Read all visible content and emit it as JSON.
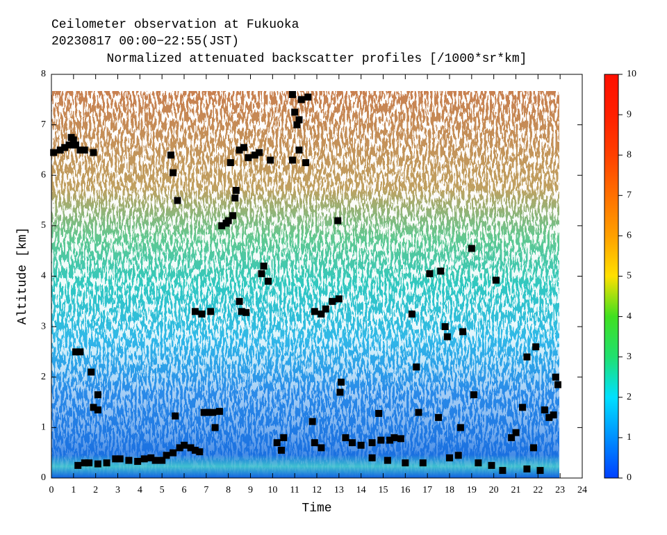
{
  "chart_data": {
    "type": "scatter",
    "title": "Ceilometer observation at Fukuoka",
    "subtitle": "20230817  00:00−22:55(JST)",
    "plot_title": "Normalized attenuated backscatter profiles [/1000*sr*km]",
    "x_label": "Time",
    "y_label": "Altitude [km]",
    "xlim": [
      0,
      24
    ],
    "xticks": [
      0,
      1,
      2,
      3,
      4,
      5,
      6,
      7,
      8,
      9,
      10,
      11,
      12,
      13,
      14,
      15,
      16,
      17,
      18,
      19,
      20,
      21,
      22,
      23,
      24
    ],
    "ylim": [
      0,
      8
    ],
    "yticks": [
      0,
      1,
      2,
      3,
      4,
      5,
      6,
      7,
      8
    ],
    "marker_color": "#000000",
    "colorbar": {
      "lim": [
        0,
        10
      ],
      "ticks": [
        0,
        1,
        2,
        3,
        4,
        5,
        6,
        7,
        8,
        9,
        10
      ],
      "colors": [
        "#0040ff",
        "#0090ff",
        "#00e0ff",
        "#20e070",
        "#40e020",
        "#ffe000",
        "#ffa000",
        "#ff7000",
        "#ff4000",
        "#ff2000",
        "#ff1000"
      ]
    },
    "x": [
      0.1,
      0.4,
      0.6,
      0.8,
      0.9,
      1.0,
      1.1,
      1.3,
      1.5,
      1.9,
      1.1,
      1.3,
      1.8,
      1.9,
      2.1,
      2.1,
      1.2,
      1.5,
      1.7,
      2.1,
      2.5,
      2.9,
      3.1,
      3.5,
      3.9,
      4.2,
      4.5,
      4.7,
      5.0,
      5.2,
      5.5,
      5.4,
      5.5,
      5.7,
      5.6,
      5.8,
      6.0,
      6.3,
      6.5,
      6.7,
      6.5,
      6.8,
      7.2,
      6.9,
      7.1,
      7.3,
      7.6,
      7.4,
      7.7,
      7.9,
      8.0,
      8.2,
      8.3,
      8.35,
      8.1,
      8.5,
      8.7,
      8.9,
      9.2,
      9.4,
      9.9,
      8.5,
      8.6,
      8.8,
      9.5,
      9.6,
      9.8,
      10.2,
      10.4,
      10.5,
      10.9,
      11.0,
      11.1,
      11.2,
      11.3,
      11.6,
      11.2,
      11.5,
      10.9,
      11.9,
      12.2,
      12.4,
      12.7,
      13.0,
      12.95,
      13.1,
      13.05,
      11.8,
      11.9,
      12.2,
      13.3,
      13.6,
      14.0,
      14.5,
      14.9,
      15.3,
      15.5,
      15.8,
      14.8,
      14.5,
      15.2,
      16.0,
      16.3,
      16.5,
      16.6,
      16.8,
      17.1,
      17.6,
      17.8,
      17.9,
      17.5,
      18.0,
      18.4,
      18.6,
      18.5,
      19.0,
      19.1,
      19.3,
      19.9,
      20.1,
      20.4,
      20.8,
      21.0,
      21.3,
      21.5,
      21.5,
      21.9,
      21.8,
      22.1,
      22.3,
      22.5,
      22.7,
      22.8,
      22.9
    ],
    "values": [
      6.45,
      6.5,
      6.55,
      6.6,
      6.75,
      6.7,
      6.6,
      6.5,
      6.5,
      6.45,
      2.5,
      2.5,
      2.1,
      1.4,
      1.35,
      1.65,
      0.25,
      0.3,
      0.3,
      0.28,
      0.3,
      0.38,
      0.38,
      0.35,
      0.33,
      0.38,
      0.4,
      0.35,
      0.35,
      0.45,
      0.5,
      6.4,
      6.05,
      5.5,
      1.23,
      0.6,
      0.65,
      0.6,
      0.55,
      0.52,
      3.3,
      3.25,
      3.3,
      1.3,
      1.3,
      1.3,
      1.32,
      1.0,
      5.0,
      5.05,
      5.1,
      5.2,
      5.55,
      5.7,
      6.25,
      6.5,
      6.55,
      6.35,
      6.4,
      6.45,
      6.3,
      3.5,
      3.3,
      3.28,
      4.05,
      4.2,
      3.9,
      0.7,
      0.55,
      0.8,
      7.6,
      7.25,
      7.0,
      7.1,
      7.5,
      7.55,
      6.5,
      6.25,
      6.3,
      3.3,
      3.25,
      3.35,
      3.5,
      3.55,
      5.1,
      1.9,
      1.7,
      1.12,
      0.7,
      0.6,
      0.8,
      0.7,
      0.65,
      0.7,
      0.75,
      0.75,
      0.8,
      0.78,
      1.28,
      0.4,
      0.35,
      0.3,
      3.25,
      2.2,
      1.3,
      0.3,
      4.05,
      4.1,
      3.0,
      2.8,
      1.2,
      0.4,
      0.45,
      2.9,
      1.0,
      4.55,
      1.65,
      0.3,
      0.25,
      3.92,
      0.15,
      0.8,
      0.9,
      1.4,
      2.4,
      0.18,
      2.6,
      0.6,
      0.15,
      1.35,
      1.2,
      1.25,
      2.0,
      1.85
    ]
  }
}
